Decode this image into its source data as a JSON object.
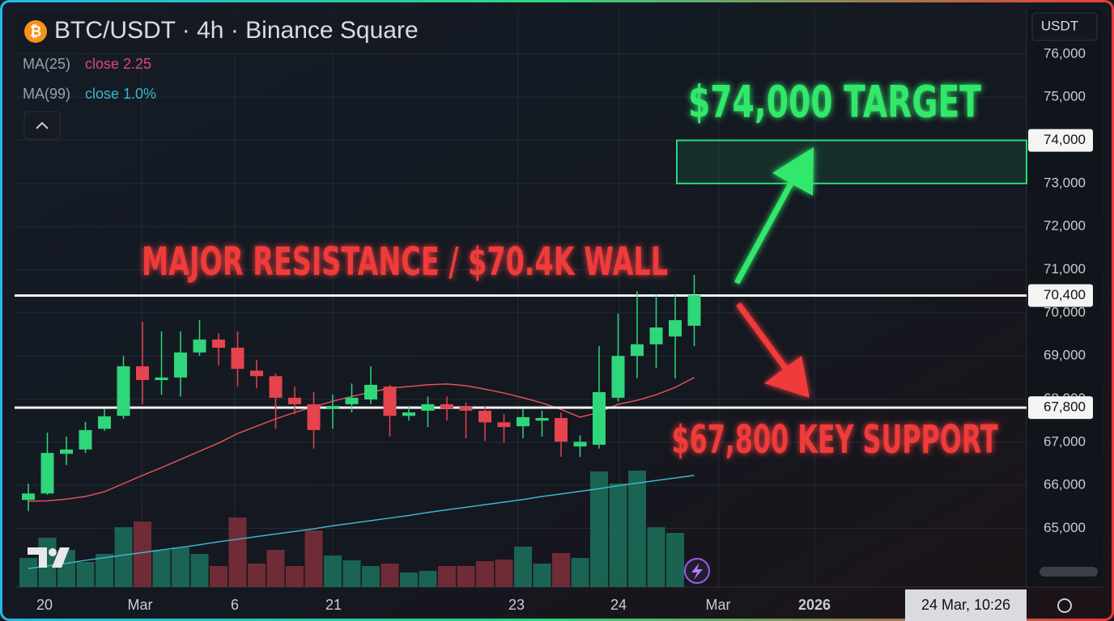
{
  "chart_data": {
    "type": "candlestick",
    "symbol_icon": "₿",
    "title": "BTC/USDT · 4h · Binance Square",
    "currency": "USDT",
    "crosshair_time": "24 Mar, 10:26",
    "time_labels": [
      "20",
      "Mar",
      "6",
      "21",
      "23",
      "24",
      "Mar",
      "2026"
    ],
    "annotations": [
      "$74,000 TARGET",
      "MAJOR RESISTANCE / $70.4K WALL",
      "$67,800 KEY SUPPORT"
    ],
    "up_color": "#2fd67a",
    "down_color": "#e5434e",
    "open": [
      65660,
      65810,
      66730,
      66830,
      67310,
      67610,
      68760,
      68440,
      68500,
      69080,
      69380,
      69190,
      68660,
      68530,
      68030,
      67880,
      67780,
      67880,
      67990,
      68290,
      67610,
      67730,
      67880,
      67820,
      67730,
      67460,
      67370,
      67500,
      67560,
      66900,
      66940,
      68030,
      69000,
      69270,
      69450,
      69700
    ],
    "high": [
      66040,
      67220,
      67130,
      67470,
      67780,
      69000,
      69790,
      69570,
      69570,
      69830,
      69530,
      69570,
      68910,
      68590,
      68290,
      68160,
      68100,
      68360,
      68760,
      68330,
      67840,
      68060,
      68060,
      67920,
      67840,
      67650,
      67770,
      67730,
      67690,
      67160,
      69230,
      69980,
      70500,
      70410,
      70410,
      70880
    ],
    "low": [
      65400,
      65780,
      66470,
      66750,
      67260,
      67540,
      67880,
      68100,
      68060,
      69000,
      68780,
      68290,
      68250,
      67310,
      67650,
      66850,
      67310,
      67690,
      67880,
      67130,
      67500,
      67350,
      67500,
      67090,
      67030,
      66980,
      67090,
      67130,
      66660,
      66660,
      66850,
      67950,
      68480,
      68720,
      68480,
      69230
    ],
    "close": [
      65810,
      66750,
      66830,
      67280,
      67600,
      68760,
      68440,
      68500,
      69080,
      69380,
      69190,
      68700,
      68530,
      68030,
      67880,
      67280,
      67840,
      68030,
      68330,
      67610,
      67690,
      67880,
      67780,
      67730,
      67460,
      67350,
      67580,
      67560,
      67010,
      67010,
      68160,
      69000,
      69270,
      69660,
      69830,
      70410
    ],
    "volume": [
      36,
      61,
      46,
      31,
      41,
      74,
      81,
      46,
      49,
      41,
      26,
      86,
      29,
      46,
      26,
      70,
      39,
      33,
      26,
      29,
      18,
      20,
      26,
      26,
      32,
      34,
      50,
      29,
      42,
      36,
      143,
      128,
      144,
      74,
      67,
      null
    ],
    "volume_ylim": [
      0,
      300
    ],
    "series": [
      {
        "name": "MA(25)",
        "detail": "close 2.25",
        "color": "#e0505a",
        "values": [
          65630,
          65640,
          65680,
          65740,
          65850,
          66040,
          66230,
          66410,
          66600,
          66790,
          66980,
          67200,
          67370,
          67540,
          67690,
          67820,
          67950,
          68060,
          68160,
          68250,
          68290,
          68330,
          68350,
          68310,
          68230,
          68140,
          68030,
          67910,
          67760,
          67580,
          67690,
          67880,
          67970,
          68100,
          68270,
          68500
        ]
      },
      {
        "name": "MA(99)",
        "detail": "close 1.0%",
        "color": "#3bb7c9",
        "values": [
          64070,
          64130,
          64190,
          64260,
          64320,
          64380,
          64440,
          64500,
          64560,
          64620,
          64690,
          64750,
          64810,
          64870,
          64930,
          64990,
          65060,
          65120,
          65180,
          65240,
          65300,
          65370,
          65430,
          65490,
          65550,
          65610,
          65670,
          65740,
          65800,
          65860,
          65920,
          65990,
          66050,
          66110,
          66170,
          66230
        ]
      }
    ],
    "ylim": [
      63640,
      77030
    ],
    "yticks": [
      {
        "value": 76000,
        "label": "76,000"
      },
      {
        "value": 75000,
        "label": "75,000"
      },
      {
        "value": 74000,
        "label": "74,000"
      },
      {
        "value": 73000,
        "label": "73,000"
      },
      {
        "value": 72000,
        "label": "72,000"
      },
      {
        "value": 71000,
        "label": "71,000"
      },
      {
        "value": 70000,
        "label": "70,000"
      },
      {
        "value": 69000,
        "label": "69,000"
      },
      {
        "value": 68000,
        "label": "68,000"
      },
      {
        "value": 67000,
        "label": "67,000"
      },
      {
        "value": 66000,
        "label": "66,000"
      },
      {
        "value": 65000,
        "label": "65,000"
      }
    ],
    "grid": true,
    "levels": [
      {
        "value": 70400,
        "label": "70,400"
      },
      {
        "value": 67800,
        "label": "67,800"
      }
    ],
    "target_zone": {
      "low": 73000,
      "high": 74000,
      "label": "74,000",
      "color": "#2fd67a"
    }
  }
}
